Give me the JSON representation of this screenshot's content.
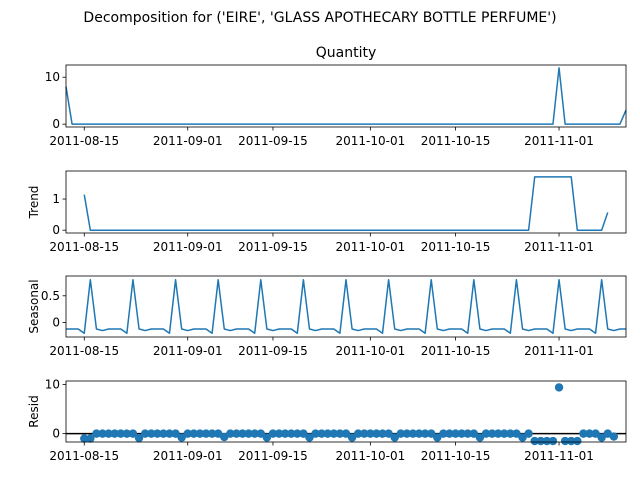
{
  "chart_data": {
    "type": "line",
    "suptitle": "Decomposition for ('EIRE', 'GLASS APOTHECARY BOTTLE PERFUME')",
    "x_tick_labels": [
      "2011-08-15",
      "2011-09-01",
      "2011-09-15",
      "2011-10-01",
      "2011-10-15",
      "2011-11-01"
    ],
    "x_tick_day_offsets": [
      3,
      20,
      34,
      50,
      64,
      81
    ],
    "x_range_days": [
      0,
      92
    ],
    "panels": [
      {
        "type": "line",
        "title": "Quantity",
        "ylabel": "",
        "ylim": [
          -0.6,
          12.6
        ],
        "yticks": [
          0,
          10
        ],
        "points": [
          [
            0,
            8
          ],
          [
            1,
            0
          ],
          [
            80,
            0
          ],
          [
            81,
            12
          ],
          [
            82,
            0
          ],
          [
            91,
            0
          ],
          [
            92,
            3
          ]
        ]
      },
      {
        "type": "line",
        "title": "",
        "ylabel": "Trend",
        "ylim": [
          -0.09,
          1.9
        ],
        "yticks": [
          0,
          1
        ],
        "points": [
          [
            3,
            1.14
          ],
          [
            4,
            0
          ],
          [
            76,
            0
          ],
          [
            77,
            1.71
          ],
          [
            83,
            1.71
          ],
          [
            84,
            0
          ],
          [
            88,
            0
          ],
          [
            89,
            0.57
          ]
        ]
      },
      {
        "type": "line",
        "title": "",
        "ylabel": "Seasonal",
        "ylim": [
          -0.27,
          0.87
        ],
        "yticks": [
          0,
          0.5
        ],
        "season_pattern": [
          0.8,
          -0.12,
          -0.15,
          -0.12,
          -0.12,
          -0.12,
          -0.2
        ],
        "season_peak_offsets": [
          4,
          11,
          18,
          25,
          32,
          39,
          46,
          53,
          60,
          67,
          74,
          81,
          88
        ]
      },
      {
        "type": "scatter",
        "title": "",
        "ylabel": "Resid",
        "ylim": [
          -1.7,
          10.7
        ],
        "yticks": [
          0,
          10
        ],
        "baseline": 0,
        "points": [
          [
            3,
            -1.0
          ],
          [
            4,
            -1.0
          ],
          [
            5,
            0.0
          ],
          [
            6,
            0.0
          ],
          [
            7,
            0.0
          ],
          [
            8,
            0.0
          ],
          [
            9,
            0.0
          ],
          [
            10,
            0.0
          ],
          [
            11,
            0.0
          ],
          [
            12,
            -0.9
          ],
          [
            13,
            0.0
          ],
          [
            14,
            0.0
          ],
          [
            15,
            0.0
          ],
          [
            16,
            0.0
          ],
          [
            17,
            0.0
          ],
          [
            18,
            0.0
          ],
          [
            19,
            -0.8
          ],
          [
            20,
            0.0
          ],
          [
            21,
            0.0
          ],
          [
            22,
            0.0
          ],
          [
            23,
            0.0
          ],
          [
            24,
            0.0
          ],
          [
            25,
            0.0
          ],
          [
            26,
            -0.7
          ],
          [
            27,
            0.0
          ],
          [
            28,
            0.0
          ],
          [
            29,
            0.0
          ],
          [
            30,
            0.0
          ],
          [
            31,
            0.0
          ],
          [
            32,
            0.0
          ],
          [
            33,
            -0.8
          ],
          [
            34,
            0.0
          ],
          [
            35,
            0.0
          ],
          [
            36,
            0.0
          ],
          [
            37,
            0.0
          ],
          [
            38,
            0.0
          ],
          [
            39,
            0.0
          ],
          [
            40,
            -0.8
          ],
          [
            41,
            0.0
          ],
          [
            42,
            0.0
          ],
          [
            43,
            0.0
          ],
          [
            44,
            0.0
          ],
          [
            45,
            0.0
          ],
          [
            46,
            0.0
          ],
          [
            47,
            -0.8
          ],
          [
            48,
            0.0
          ],
          [
            49,
            0.0
          ],
          [
            50,
            0.0
          ],
          [
            51,
            0.0
          ],
          [
            52,
            0.0
          ],
          [
            53,
            0.0
          ],
          [
            54,
            -0.8
          ],
          [
            55,
            0.0
          ],
          [
            56,
            0.0
          ],
          [
            57,
            0.0
          ],
          [
            58,
            0.0
          ],
          [
            59,
            0.0
          ],
          [
            60,
            0.0
          ],
          [
            61,
            -0.8
          ],
          [
            62,
            0.0
          ],
          [
            63,
            0.0
          ],
          [
            64,
            0.0
          ],
          [
            65,
            0.0
          ],
          [
            66,
            0.0
          ],
          [
            67,
            0.0
          ],
          [
            68,
            -0.8
          ],
          [
            69,
            0.0
          ],
          [
            70,
            0.0
          ],
          [
            71,
            0.0
          ],
          [
            72,
            0.0
          ],
          [
            73,
            0.0
          ],
          [
            74,
            0.0
          ],
          [
            75,
            -0.8
          ],
          [
            76,
            0.0
          ],
          [
            77,
            -1.5
          ],
          [
            78,
            -1.5
          ],
          [
            79,
            -1.5
          ],
          [
            80,
            -1.5
          ],
          [
            81,
            9.4
          ],
          [
            82,
            -1.5
          ],
          [
            83,
            -1.5
          ],
          [
            84,
            -1.5
          ],
          [
            85,
            0.0
          ],
          [
            86,
            0.0
          ],
          [
            87,
            0.0
          ],
          [
            88,
            -0.8
          ],
          [
            89,
            0.0
          ],
          [
            90,
            -0.6
          ]
        ]
      }
    ],
    "colors": {
      "line": "#1f77b4",
      "axis": "#000000"
    }
  }
}
